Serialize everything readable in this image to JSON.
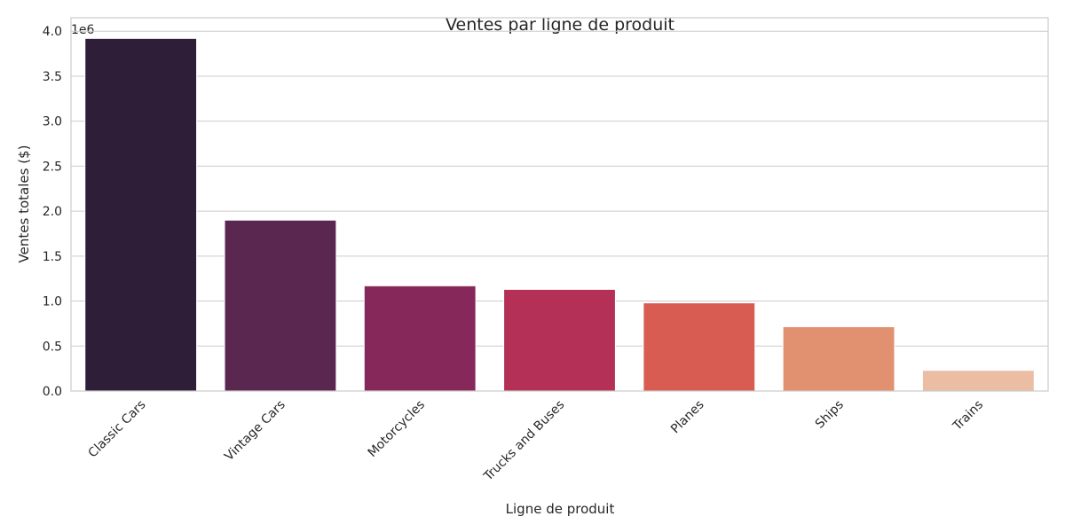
{
  "chart_data": {
    "type": "bar",
    "title": "Ventes par ligne de produit",
    "xlabel": "Ligne de produit",
    "ylabel": "Ventes totales ($)",
    "y_offset_label": "1e6",
    "categories": [
      "Classic Cars",
      "Vintage Cars",
      "Motorcycles",
      "Trucks and Buses",
      "Planes",
      "Ships",
      "Trains"
    ],
    "values": [
      3920000,
      1900000,
      1170000,
      1130000,
      980000,
      715000,
      230000
    ],
    "colors": [
      "#2f1e38",
      "#5a2750",
      "#87285a",
      "#b43056",
      "#d85c51",
      "#e19170",
      "#ebbea3"
    ],
    "ylim": [
      0,
      4150000
    ],
    "yticks": [
      0,
      500000,
      1000000,
      1500000,
      2000000,
      2500000,
      3000000,
      3500000,
      4000000
    ],
    "ytick_labels": [
      "0.0",
      "0.5",
      "1.0",
      "1.5",
      "2.0",
      "2.5",
      "3.0",
      "3.5",
      "4.0"
    ],
    "grid": "horizontal",
    "legend": "none"
  }
}
